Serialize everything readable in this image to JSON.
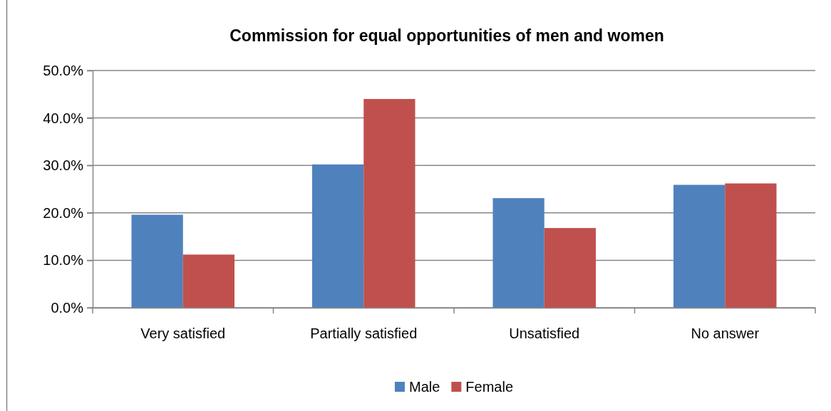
{
  "chart_data": {
    "type": "bar",
    "title": "Commission for equal opportunities of men and women",
    "categories": [
      "Very satisfied",
      "Partially satisfied",
      "Unsatisfied",
      "No answer"
    ],
    "series": [
      {
        "name": "Male",
        "color": "#4f81bd",
        "values": [
          19.6,
          30.2,
          23.1,
          25.9
        ]
      },
      {
        "name": "Female",
        "color": "#c0504d",
        "values": [
          11.2,
          44.0,
          16.8,
          26.2
        ]
      }
    ],
    "ylim": [
      0,
      50
    ],
    "yticks": [
      {
        "value": 0,
        "label": "0.0%"
      },
      {
        "value": 10,
        "label": "10.0%"
      },
      {
        "value": 20,
        "label": "20.0%"
      },
      {
        "value": 30,
        "label": "30.0%"
      },
      {
        "value": 40,
        "label": "40.0%"
      },
      {
        "value": 50,
        "label": "50.0%"
      }
    ],
    "grid": "y",
    "legend": "bottom"
  }
}
